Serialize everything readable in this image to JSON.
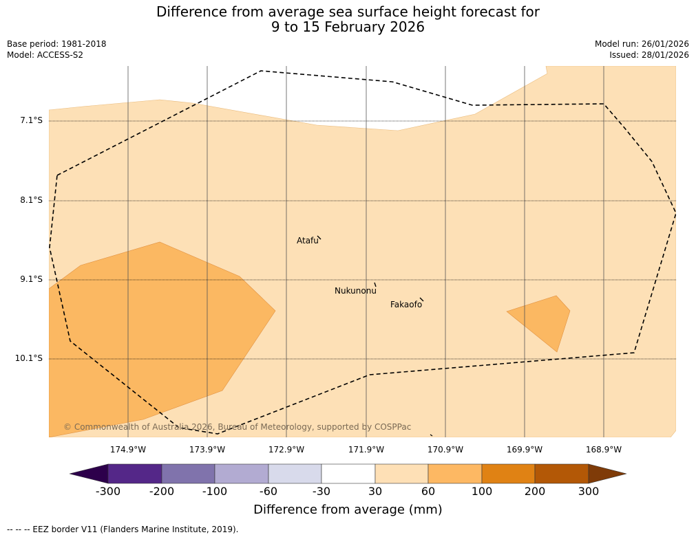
{
  "title": {
    "line1": "Difference from average sea surface height forecast for",
    "line2": "9 to 15 February 2026"
  },
  "meta": {
    "base_period": "Base period: 1981-2018",
    "model": "Model: ACCESS-S2",
    "model_run": "Model run: 26/01/2026",
    "issued": "Issued: 28/01/2026"
  },
  "map": {
    "latitude_labels": [
      "7.1°S",
      "8.1°S",
      "9.1°S",
      "10.1°S"
    ],
    "longitude_labels": [
      "174.9°W",
      "173.9°W",
      "172.9°W",
      "171.9°W",
      "170.9°W",
      "169.9°W",
      "168.9°W"
    ],
    "places": [
      "Atafu",
      "Nukunonu",
      "Fakaofo"
    ],
    "copyright": "© Commonwealth of Australia 2026, Bureau of Meteorology, supported by COSPPac",
    "colors": {
      "band_30_60": "#fde0b6",
      "band_60_100": "#fbb862",
      "background": "#ffffff"
    }
  },
  "colorbar": {
    "ticks": [
      "-300",
      "-200",
      "-100",
      "-60",
      "-30",
      "30",
      "60",
      "100",
      "200",
      "300"
    ],
    "label": "Difference from average (mm)",
    "colors": [
      "#2d004b",
      "#542788",
      "#8073ac",
      "#b2abd2",
      "#d8daeb",
      "#ffffff",
      "#fee0b6",
      "#fdb863",
      "#e08214",
      "#b35806",
      "#7f3b08"
    ]
  },
  "footnote": "--  --  -- EEZ border V11 (Flanders Marine Institute, 2019)."
}
